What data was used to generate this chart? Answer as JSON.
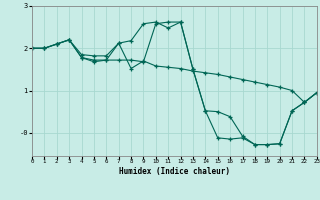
{
  "xlabel": "Humidex (Indice chaleur)",
  "background_color": "#c8ece6",
  "grid_color": "#a8d8d0",
  "line_color": "#006655",
  "xlim": [
    0,
    23
  ],
  "ylim": [
    -0.55,
    3.0
  ],
  "yticks": [
    0,
    1,
    2,
    3
  ],
  "ytick_labels": [
    "-0",
    "1",
    "2",
    "3"
  ],
  "xticks": [
    0,
    1,
    2,
    3,
    4,
    5,
    6,
    7,
    8,
    9,
    10,
    11,
    12,
    13,
    14,
    15,
    16,
    17,
    18,
    19,
    20,
    21,
    22,
    23
  ],
  "series1_x": [
    0,
    1,
    2,
    3,
    4,
    5,
    6,
    7,
    8,
    9,
    10,
    11,
    12,
    13,
    14,
    15,
    16,
    17,
    18,
    19,
    20,
    21,
    22,
    23
  ],
  "series1_y": [
    2.0,
    2.0,
    2.1,
    2.2,
    1.85,
    1.82,
    1.82,
    2.12,
    1.52,
    1.7,
    1.58,
    1.55,
    1.52,
    1.46,
    1.42,
    1.38,
    1.32,
    1.26,
    1.2,
    1.14,
    1.08,
    1.0,
    0.72,
    0.95
  ],
  "series2_x": [
    0,
    1,
    2,
    3,
    4,
    5,
    6,
    7,
    8,
    9,
    10,
    11,
    12,
    13,
    14,
    15,
    16,
    17,
    18,
    19,
    20,
    21,
    22,
    23
  ],
  "series2_y": [
    2.0,
    2.0,
    2.1,
    2.2,
    1.78,
    1.72,
    1.72,
    2.12,
    2.18,
    2.58,
    2.62,
    2.48,
    2.62,
    1.5,
    0.52,
    0.5,
    0.38,
    -0.08,
    -0.28,
    -0.28,
    -0.26,
    0.52,
    0.72,
    0.95
  ],
  "series3_x": [
    0,
    1,
    2,
    3,
    4,
    5,
    6,
    7,
    8,
    9,
    10,
    11,
    12,
    13,
    14,
    15,
    16,
    17,
    18,
    19,
    20,
    21,
    22,
    23
  ],
  "series3_y": [
    2.0,
    2.0,
    2.1,
    2.2,
    1.78,
    1.68,
    1.72,
    1.72,
    1.72,
    1.68,
    2.58,
    2.62,
    2.62,
    1.5,
    0.52,
    -0.12,
    -0.15,
    -0.12,
    -0.28,
    -0.28,
    -0.26,
    0.52,
    0.72,
    0.95
  ]
}
